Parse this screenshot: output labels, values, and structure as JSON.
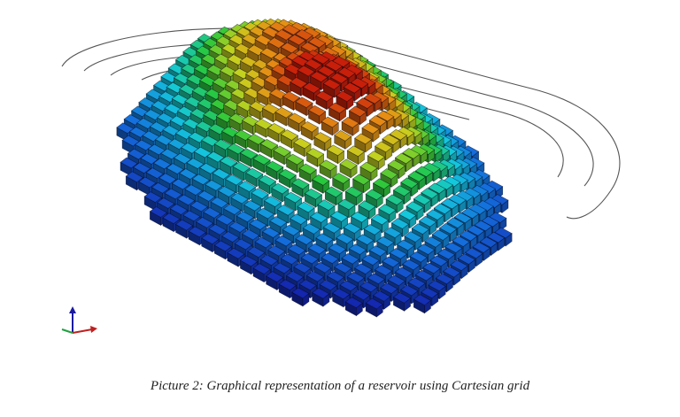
{
  "caption": "Picture 2: Graphical representation of a reservoir using Cartesian grid"
}
